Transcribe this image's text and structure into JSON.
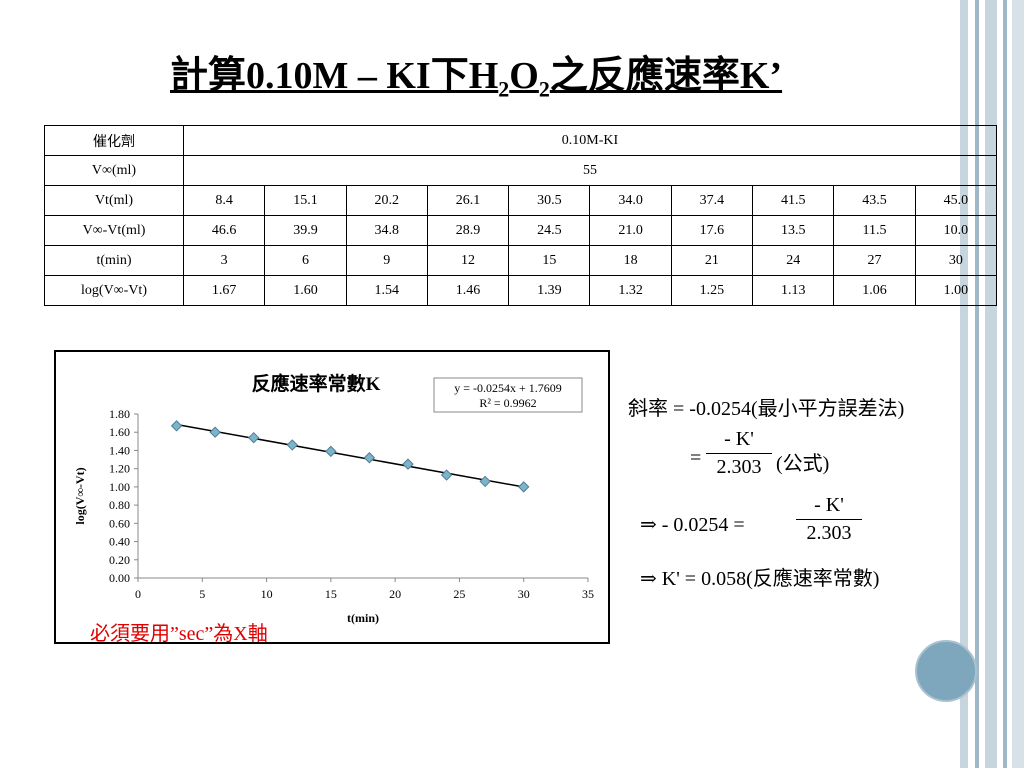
{
  "slide": {
    "title_parts": {
      "a": "計算0.10M – KI下H",
      "sub1": "2",
      "b": "O",
      "sub2": "2",
      "c": "之反應速率K’"
    }
  },
  "table": {
    "row_catalyst": {
      "label": "催化劑",
      "value": "0.10M-KI"
    },
    "row_vinf": {
      "label": "V∞(ml)",
      "value": "55"
    },
    "rows": [
      {
        "label": "Vt(ml)",
        "values": [
          "8.4",
          "15.1",
          "20.2",
          "26.1",
          "30.5",
          "34.0",
          "37.4",
          "41.5",
          "43.5",
          "45.0"
        ]
      },
      {
        "label": "V∞-Vt(ml)",
        "values": [
          "46.6",
          "39.9",
          "34.8",
          "28.9",
          "24.5",
          "21.0",
          "17.6",
          "13.5",
          "11.5",
          "10.0"
        ]
      },
      {
        "label": "t(min)",
        "values": [
          "3",
          "6",
          "9",
          "12",
          "15",
          "18",
          "21",
          "24",
          "27",
          "30"
        ]
      },
      {
        "label": "log(V∞-Vt)",
        "values": [
          "1.67",
          "1.60",
          "1.54",
          "1.46",
          "1.39",
          "1.32",
          "1.25",
          "1.13",
          "1.06",
          "1.00"
        ]
      }
    ]
  },
  "chart_data": {
    "type": "scatter",
    "title": "反應速率常數K",
    "xlabel": "t(min)",
    "ylabel": "log(V∞-Vt)",
    "xlim": [
      0,
      35
    ],
    "ylim": [
      0.0,
      1.8
    ],
    "xticks": [
      "0",
      "5",
      "10",
      "15",
      "20",
      "25",
      "30",
      "35"
    ],
    "yticks": [
      "0.00",
      "0.20",
      "0.40",
      "0.60",
      "0.80",
      "1.00",
      "1.20",
      "1.40",
      "1.60",
      "1.80"
    ],
    "x": [
      3,
      6,
      9,
      12,
      15,
      18,
      21,
      24,
      27,
      30
    ],
    "y": [
      1.67,
      1.6,
      1.54,
      1.46,
      1.39,
      1.32,
      1.25,
      1.13,
      1.06,
      1.0
    ],
    "trendline": {
      "slope": -0.0254,
      "intercept": 1.7609,
      "x_range": [
        3,
        30
      ]
    },
    "equation_label": "y = -0.0254x + 1.7609",
    "r2_label": "R² = 0.9962",
    "marker_color": "#7fb3c9",
    "grid": false
  },
  "note": "必須要用”sec”為X軸",
  "equations": {
    "line1": "斜率 = -0.0254(最小平方誤差法)",
    "line2_eq": "=",
    "line2_num": "- K'",
    "line2_den": "2.303",
    "line2_suffix": "(公式)",
    "line3_prefix": "⇒   - 0.0254 =",
    "line3_num": "- K'",
    "line3_den": "2.303",
    "line4": "⇒ K' = 0.058(反應速率常數)"
  },
  "colors": {
    "accent_circle": "#7ea7bd",
    "note_red": "#e00000"
  }
}
